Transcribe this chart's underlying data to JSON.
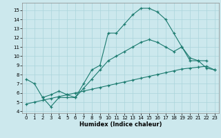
{
  "xlabel": "Humidex (Indice chaleur)",
  "bg": "#cce8ed",
  "grid_color": "#aad4db",
  "lc": "#1a7a6e",
  "xlim": [
    -0.5,
    23.5
  ],
  "ylim": [
    3.8,
    15.8
  ],
  "yticks": [
    4,
    5,
    6,
    7,
    8,
    9,
    10,
    11,
    12,
    13,
    14,
    15
  ],
  "xticks": [
    0,
    1,
    2,
    3,
    4,
    5,
    6,
    7,
    8,
    9,
    10,
    11,
    12,
    13,
    14,
    15,
    16,
    17,
    18,
    19,
    20,
    21,
    22,
    23
  ],
  "curve1": {
    "x": [
      0,
      1,
      2,
      3,
      4,
      5,
      6,
      7,
      8,
      9,
      10,
      11,
      12,
      13,
      14,
      15,
      16,
      17,
      18,
      19,
      20,
      21,
      22
    ],
    "y": [
      7.5,
      7.0,
      5.5,
      4.5,
      5.5,
      5.5,
      5.5,
      7.0,
      8.5,
      9.0,
      12.5,
      12.5,
      13.5,
      14.5,
      15.2,
      15.2,
      14.8,
      14.0,
      12.5,
      11.0,
      9.5,
      9.5,
      9.5
    ]
  },
  "curve2": {
    "x": [
      2,
      3,
      4,
      5,
      6,
      7,
      8,
      9,
      10,
      11,
      12,
      13,
      14,
      15,
      16,
      17,
      18,
      19,
      20,
      21,
      22,
      23
    ],
    "y": [
      5.5,
      5.8,
      6.2,
      5.8,
      5.5,
      6.5,
      7.5,
      8.5,
      9.5,
      10.0,
      10.5,
      11.0,
      11.5,
      11.8,
      11.5,
      11.0,
      10.5,
      11.0,
      9.8,
      9.5,
      8.7,
      8.5
    ]
  },
  "curve3": {
    "x": [
      0,
      1,
      2,
      3,
      4,
      5,
      6,
      7,
      8,
      9,
      10,
      11,
      12,
      13,
      14,
      15,
      16,
      17,
      18,
      19,
      20,
      21,
      22,
      23
    ],
    "y": [
      4.8,
      5.0,
      5.2,
      5.4,
      5.6,
      5.8,
      6.0,
      6.2,
      6.4,
      6.6,
      6.8,
      7.0,
      7.2,
      7.4,
      7.6,
      7.8,
      8.0,
      8.2,
      8.4,
      8.6,
      8.7,
      8.8,
      8.9,
      8.5
    ]
  },
  "tick_fontsize": 5,
  "xlabel_fontsize": 6,
  "lw": 0.8,
  "ms": 3.0
}
